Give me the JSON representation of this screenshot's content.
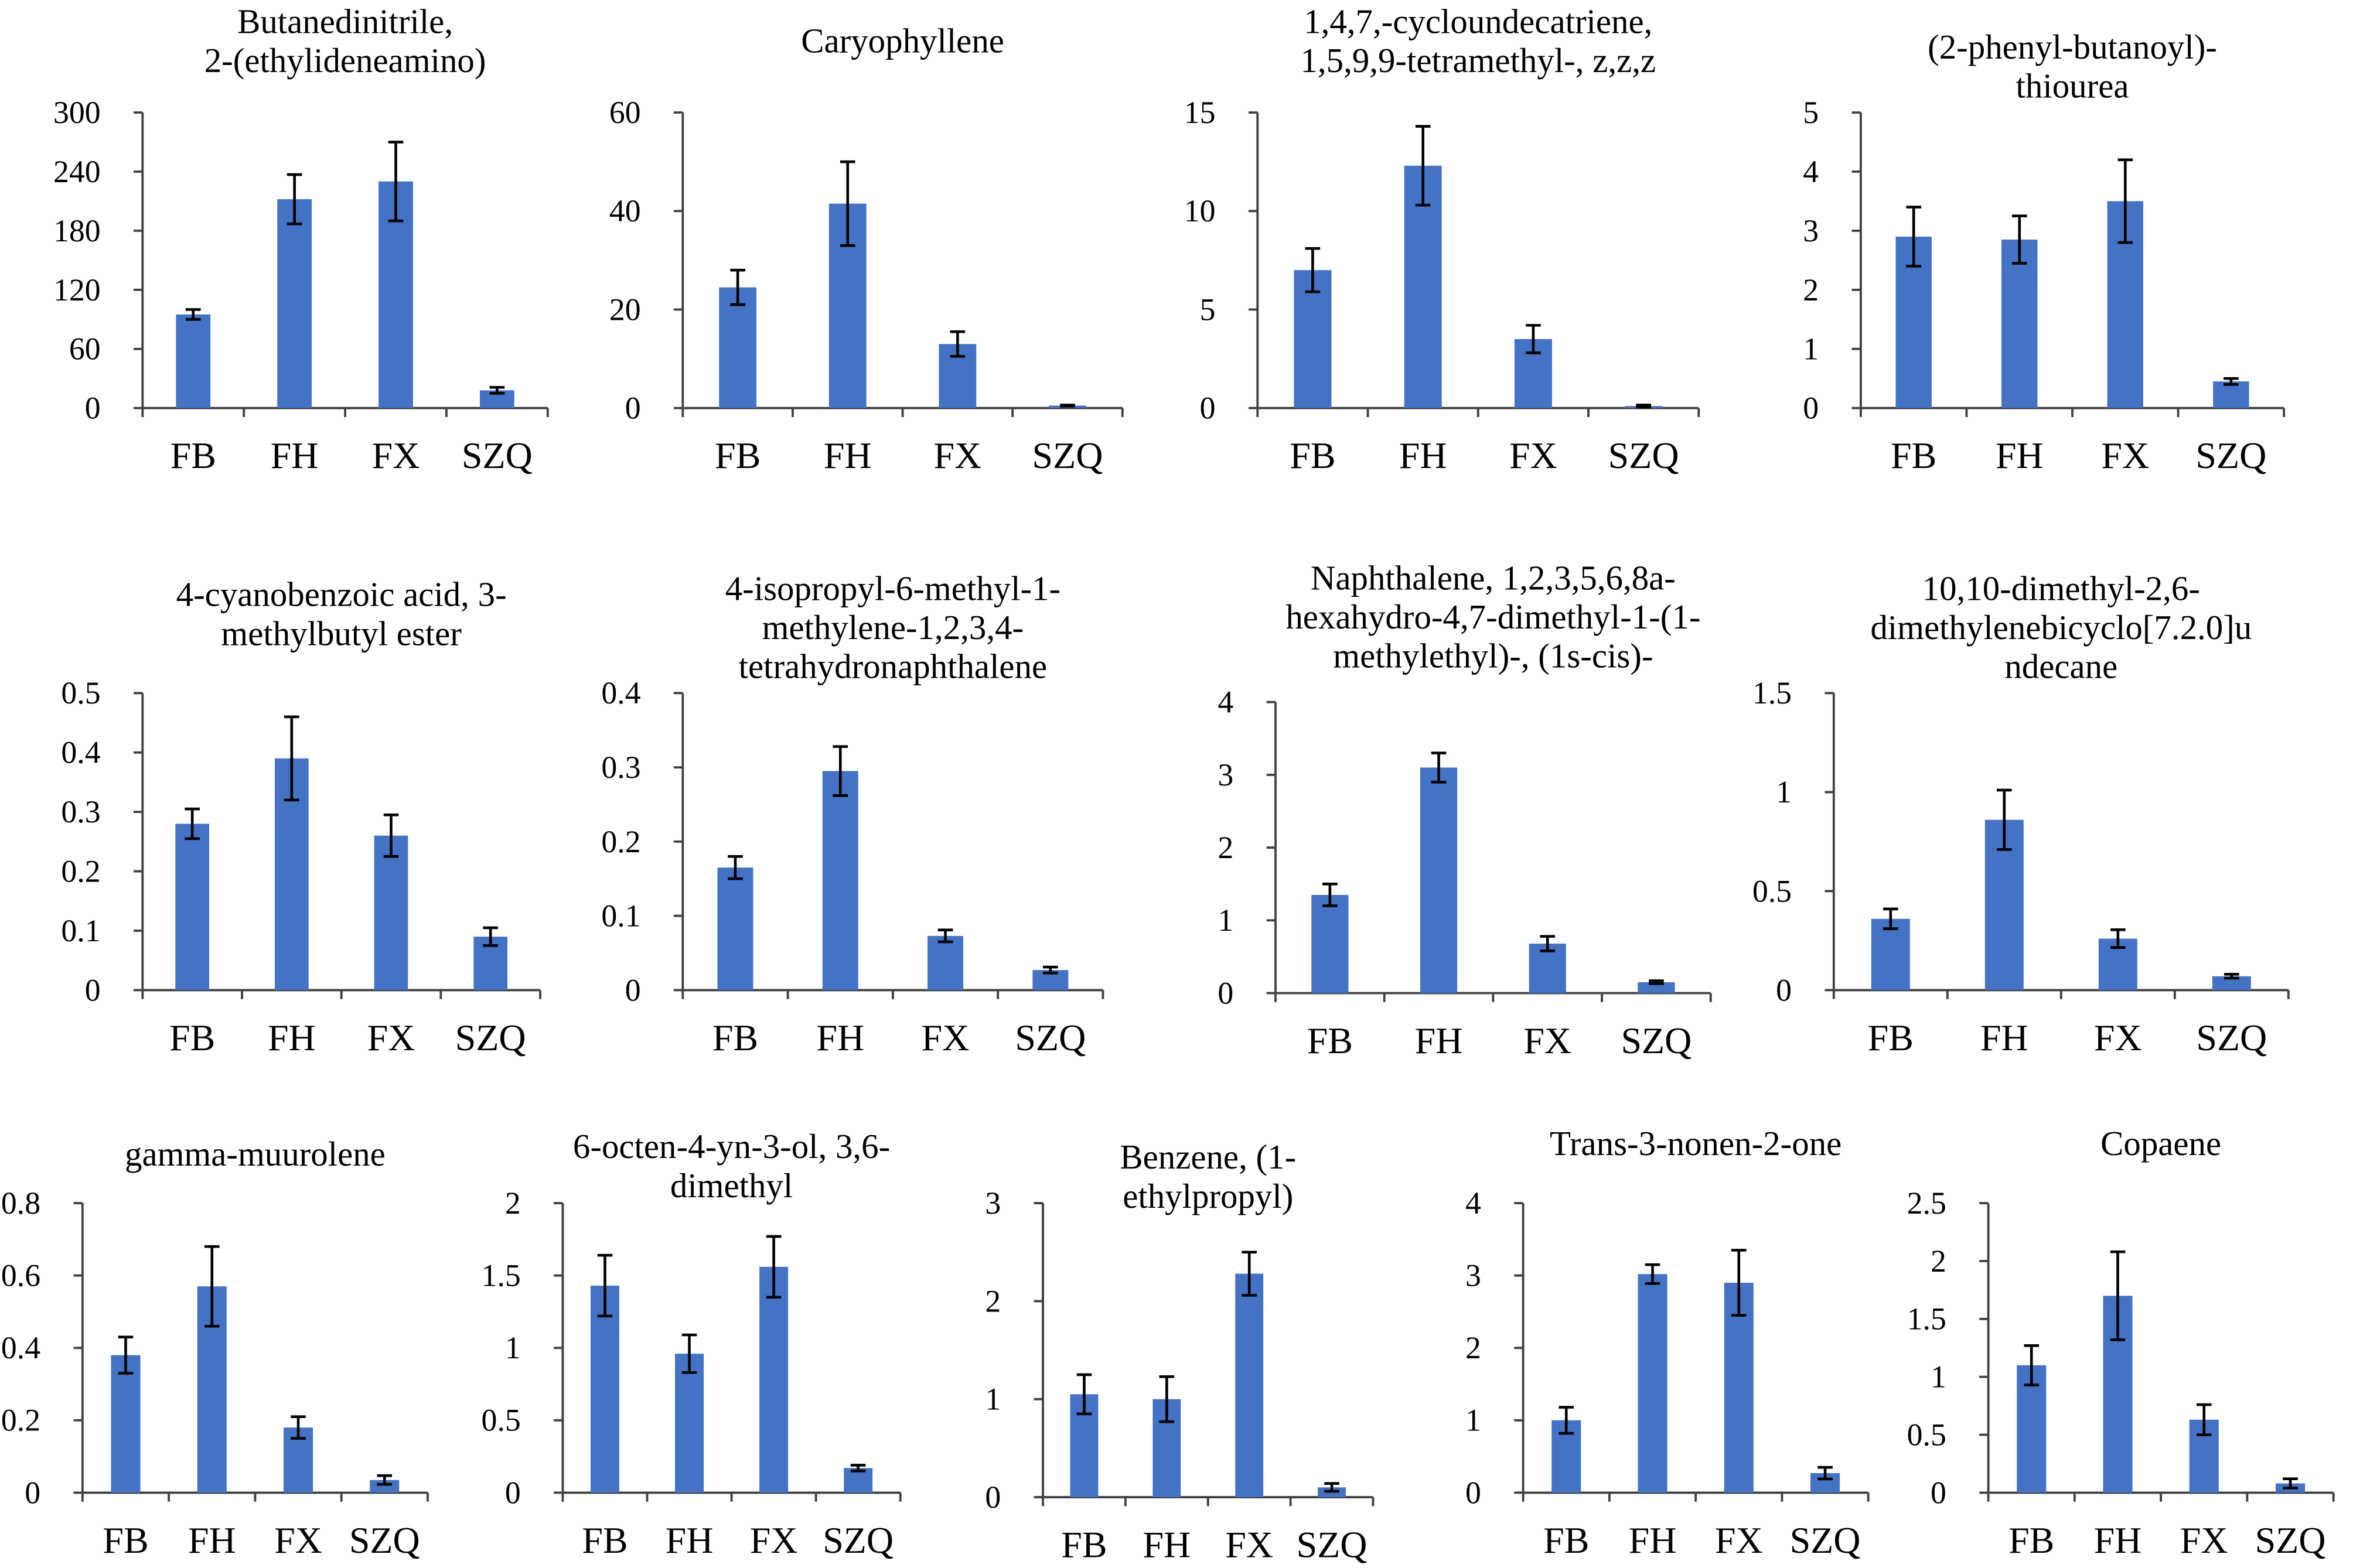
{
  "colors": {
    "bar": "#4472C4",
    "axis": "#404040",
    "text": "#000000"
  },
  "chart_data": [
    {
      "type": "bar",
      "title": [
        "Butanedinitrile,",
        "2-(ethylideneamino)"
      ],
      "categories": [
        "FB",
        "FH",
        "FX",
        "SZQ"
      ],
      "values": [
        95,
        212,
        230,
        18
      ],
      "errors": [
        5,
        25,
        40,
        3
      ],
      "ylim": [
        0,
        300
      ],
      "yticks": [
        "0",
        "60",
        "120",
        "180",
        "240",
        "300"
      ]
    },
    {
      "type": "bar",
      "title": [
        "Caryophyllene"
      ],
      "categories": [
        "FB",
        "FH",
        "FX",
        "SZQ"
      ],
      "values": [
        24.5,
        41.5,
        13,
        0.5
      ],
      "errors": [
        3.5,
        8.5,
        2.5,
        0.1
      ],
      "ylim": [
        0,
        60
      ],
      "yticks": [
        "0",
        "20",
        "40",
        "60"
      ]
    },
    {
      "type": "bar",
      "title": [
        "1,4,7,-cycloundecatriene,",
        "1,5,9,9-tetramethyl-, z,z,z"
      ],
      "categories": [
        "FB",
        "FH",
        "FX",
        "SZQ"
      ],
      "values": [
        7,
        12.3,
        3.5,
        0.1
      ],
      "errors": [
        1.1,
        2,
        0.7,
        0.05
      ],
      "ylim": [
        0,
        15
      ],
      "yticks": [
        "0",
        "5",
        "10",
        "15"
      ]
    },
    {
      "type": "bar",
      "title": [
        "(2-phenyl-butanoyl)-",
        "thiourea"
      ],
      "categories": [
        "FB",
        "FH",
        "FX",
        "SZQ"
      ],
      "values": [
        2.9,
        2.85,
        3.5,
        0.45
      ],
      "errors": [
        0.5,
        0.4,
        0.7,
        0.05
      ],
      "ylim": [
        0,
        5
      ],
      "yticks": [
        "0",
        "1",
        "2",
        "3",
        "4",
        "5"
      ]
    },
    {
      "type": "bar",
      "title": [
        "4-cyanobenzoic acid, 3-",
        "methylbutyl ester"
      ],
      "categories": [
        "FB",
        "FH",
        "FX",
        "SZQ"
      ],
      "values": [
        0.28,
        0.39,
        0.26,
        0.09
      ],
      "errors": [
        0.025,
        0.07,
        0.035,
        0.015
      ],
      "ylim": [
        0,
        0.5
      ],
      "yticks": [
        "0",
        "0.1",
        "0.2",
        "0.3",
        "0.4",
        "0.5"
      ]
    },
    {
      "type": "bar",
      "title": [
        "4-isopropyl-6-methyl-1-",
        "methylene-1,2,3,4-",
        "tetrahydronaphthalene"
      ],
      "categories": [
        "FB",
        "FH",
        "FX",
        "SZQ"
      ],
      "values": [
        0.165,
        0.295,
        0.073,
        0.027
      ],
      "errors": [
        0.015,
        0.033,
        0.008,
        0.004
      ],
      "ylim": [
        0,
        0.4
      ],
      "yticks": [
        "0",
        "0.1",
        "0.2",
        "0.3",
        "0.4"
      ]
    },
    {
      "type": "bar",
      "title": [
        "Naphthalene, 1,2,3,5,6,8a-",
        "hexahydro-4,7-dimethyl-1-(1-",
        "methylethyl)-, (1s-cis)-"
      ],
      "categories": [
        "FB",
        "FH",
        "FX",
        "SZQ"
      ],
      "values": [
        1.35,
        3.1,
        0.68,
        0.15
      ],
      "errors": [
        0.15,
        0.2,
        0.1,
        0.02
      ],
      "ylim": [
        0,
        4
      ],
      "yticks": [
        "0",
        "1",
        "2",
        "3",
        "4"
      ]
    },
    {
      "type": "bar",
      "title": [
        "10,10-dimethyl-2,6-",
        "dimethylenebicyclo[7.2.0]u",
        "ndecane"
      ],
      "categories": [
        "FB",
        "FH",
        "FX",
        "SZQ"
      ],
      "values": [
        0.36,
        0.86,
        0.26,
        0.07
      ],
      "errors": [
        0.05,
        0.15,
        0.045,
        0.01
      ],
      "ylim": [
        0,
        1.5
      ],
      "yticks": [
        "0",
        "0.5",
        "1",
        "1.5"
      ]
    },
    {
      "type": "bar",
      "title": [
        "gamma-muurolene"
      ],
      "categories": [
        "FB",
        "FH",
        "FX",
        "SZQ"
      ],
      "values": [
        0.38,
        0.57,
        0.18,
        0.035
      ],
      "errors": [
        0.05,
        0.11,
        0.03,
        0.012
      ],
      "ylim": [
        0,
        0.8
      ],
      "yticks": [
        "0",
        "0.2",
        "0.4",
        "0.6",
        "0.8"
      ]
    },
    {
      "type": "bar",
      "title": [
        "6-octen-4-yn-3-ol, 3,6-",
        "dimethyl"
      ],
      "categories": [
        "FB",
        "FH",
        "FX",
        "SZQ"
      ],
      "values": [
        1.43,
        0.96,
        1.56,
        0.17
      ],
      "errors": [
        0.21,
        0.13,
        0.21,
        0.02
      ],
      "ylim": [
        0,
        2
      ],
      "yticks": [
        "0",
        "0.5",
        "1",
        "1.5",
        "2"
      ]
    },
    {
      "type": "bar",
      "title": [
        "Benzene, (1-",
        "ethylpropyl)"
      ],
      "categories": [
        "FB",
        "FH",
        "FX",
        "SZQ"
      ],
      "values": [
        1.05,
        1.0,
        2.28,
        0.1
      ],
      "errors": [
        0.2,
        0.23,
        0.22,
        0.04
      ],
      "ylim": [
        0,
        3
      ],
      "yticks": [
        "0",
        "1",
        "2",
        "3"
      ]
    },
    {
      "type": "bar",
      "title": [
        "Trans-3-nonen-2-one"
      ],
      "categories": [
        "FB",
        "FH",
        "FX",
        "SZQ"
      ],
      "values": [
        1.0,
        3.02,
        2.9,
        0.27
      ],
      "errors": [
        0.18,
        0.13,
        0.45,
        0.08
      ],
      "ylim": [
        0,
        4
      ],
      "yticks": [
        "0",
        "1",
        "2",
        "3",
        "4"
      ]
    },
    {
      "type": "bar",
      "title": [
        "Copaene"
      ],
      "categories": [
        "FB",
        "FH",
        "FX",
        "SZQ"
      ],
      "values": [
        1.1,
        1.7,
        0.63,
        0.08
      ],
      "errors": [
        0.17,
        0.38,
        0.13,
        0.04
      ],
      "ylim": [
        0,
        2.5
      ],
      "yticks": [
        "0",
        "0.5",
        "1",
        "1.5",
        "2",
        "2.5"
      ]
    }
  ]
}
